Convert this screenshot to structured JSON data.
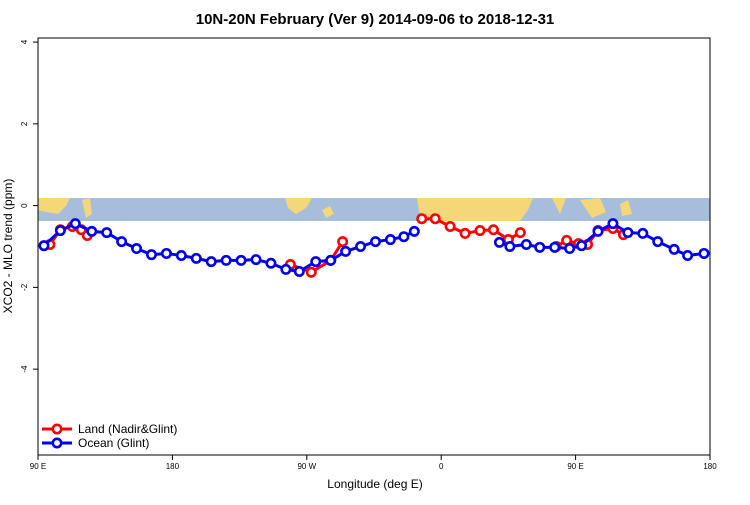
{
  "chart_data": {
    "type": "line",
    "title": "10N-20N February (Ver 9)   2014-09-06 to 2018-12-31",
    "x_label": "Longitude (deg E)",
    "y_label": "XCO2 - MLO trend (ppm)",
    "xlim": [
      90,
      540
    ],
    "ylim": [
      -6.1,
      4.1
    ],
    "xticks": [
      {
        "value": 90,
        "label": "90 E"
      },
      180,
      {
        "value": 270,
        "label": "90 W"
      },
      {
        "value": 360,
        "label": "0"
      },
      {
        "value": 450,
        "label": "90 E"
      },
      {
        "value": 540,
        "label": "180"
      }
    ],
    "yticks": [
      -4,
      -2,
      0,
      2,
      4
    ],
    "legend": "bottom-left",
    "series": [
      {
        "name": "Land (Nadir&Glint)",
        "color": "#ff0000",
        "x": [
          98,
          105,
          113,
          119,
          123,
          200,
          259,
          273,
          286,
          294,
          320,
          347,
          356,
          366,
          376,
          386,
          395,
          405,
          413,
          420,
          437,
          444,
          452,
          458,
          465,
          475,
          482
        ],
        "values": [
          -0.95,
          -0.59,
          -0.51,
          -0.59,
          -0.73,
          null,
          -1.44,
          -1.63,
          -1.34,
          -0.88,
          null,
          -0.32,
          -0.32,
          -0.51,
          -0.68,
          -0.61,
          -0.59,
          -0.83,
          -0.66,
          null,
          -1.0,
          -0.85,
          -0.93,
          -0.95,
          -0.61,
          -0.56,
          -0.71
        ]
      },
      {
        "name": "Ocean (Glint)",
        "color": "#0000ee",
        "x": [
          94,
          105,
          115,
          126,
          136,
          146,
          156,
          166,
          176,
          186,
          196,
          206,
          216,
          226,
          236,
          246,
          256,
          265,
          276,
          286,
          296,
          306,
          316,
          326,
          335,
          342,
          370,
          399,
          406,
          417,
          426,
          436,
          446,
          454,
          465,
          475,
          485,
          495,
          505,
          516,
          525,
          536
        ],
        "values": [
          -0.98,
          -0.61,
          -0.44,
          -0.63,
          -0.66,
          -0.88,
          -1.05,
          -1.2,
          -1.17,
          -1.22,
          -1.29,
          -1.37,
          -1.34,
          -1.34,
          -1.32,
          -1.41,
          -1.56,
          -1.61,
          -1.37,
          -1.34,
          -1.12,
          -1.0,
          -0.88,
          -0.83,
          -0.76,
          -0.63,
          null,
          -0.9,
          -1.0,
          -0.95,
          -1.02,
          -1.02,
          -1.05,
          -0.98,
          -0.63,
          -0.44,
          -0.66,
          -0.68,
          -0.88,
          -1.07,
          -1.22,
          -1.17
        ]
      }
    ]
  }
}
